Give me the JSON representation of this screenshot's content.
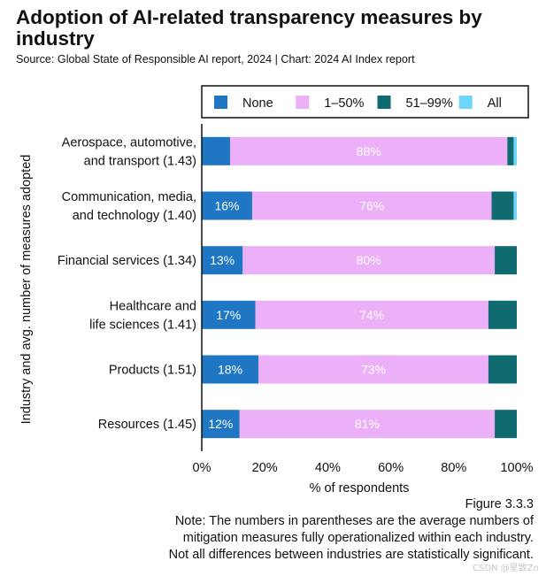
{
  "header": {
    "title": "Adoption of AI-related transparency measures by industry",
    "subtitle": "Source: Global State of Responsible AI report, 2024 | Chart: 2024 AI Index report"
  },
  "footer": {
    "figure": "Figure 3.3.3",
    "note_lines": [
      "Note: The numbers in parentheses are the average numbers of",
      "mitigation measures fully operationalized within each industry.",
      "Not all differences between industries are statistically significant."
    ],
    "watermark": "CSDN @星致Zn"
  },
  "chart_data": {
    "type": "bar",
    "orientation": "horizontal",
    "stacked": true,
    "title": "Adoption of AI-related transparency measures by industry",
    "xlabel": "% of respondents",
    "ylabel": "Industry and avg. number of measures adopted",
    "xlim": [
      0,
      100
    ],
    "xticks": [
      "0%",
      "20%",
      "40%",
      "60%",
      "80%",
      "100%"
    ],
    "xtick_values": [
      0,
      20,
      40,
      60,
      80,
      100
    ],
    "legend_position": "top",
    "categories": [
      [
        "Aerospace, automotive,",
        "and transport (1.43)"
      ],
      [
        "Communication, media,",
        "and technology (1.40)"
      ],
      [
        "Financial services (1.34)"
      ],
      [
        "Healthcare and",
        "life sciences (1.41)"
      ],
      [
        "Products (1.51)"
      ],
      [
        "Resources (1.45)"
      ]
    ],
    "series": [
      {
        "name": "None",
        "color": "#1f77c4",
        "values": [
          9,
          16,
          13,
          17,
          18,
          12
        ],
        "labels": [
          "",
          "16%",
          "13%",
          "17%",
          "18%",
          "12%"
        ]
      },
      {
        "name": "1–50%",
        "color": "#ebb0f7",
        "values": [
          88,
          76,
          80,
          74,
          73,
          81
        ],
        "labels": [
          "88%",
          "76%",
          "80%",
          "74%",
          "73%",
          "81%"
        ]
      },
      {
        "name": "51–99%",
        "color": "#0f6b70",
        "values": [
          2,
          7,
          7,
          9,
          9,
          7
        ],
        "labels": [
          "",
          "",
          "",
          "",
          "",
          ""
        ]
      },
      {
        "name": "All",
        "color": "#6fd6fb",
        "values": [
          1,
          1,
          0,
          0,
          0,
          0
        ],
        "labels": [
          "",
          "",
          "",
          "",
          "",
          ""
        ]
      }
    ]
  }
}
